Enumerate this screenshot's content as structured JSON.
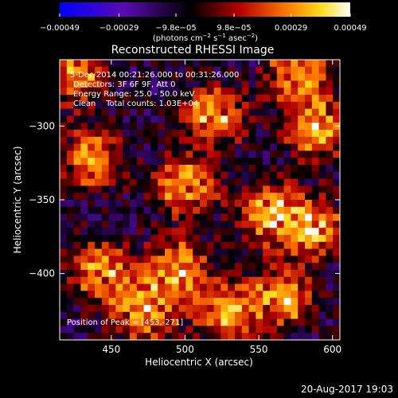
{
  "colorbar": {
    "tick_labels": [
      "−0.00049",
      "−0.00029",
      "−9.8e−05",
      "9.8e−05",
      "0.00029",
      "0.00049"
    ],
    "tick_values": [
      -0.00049,
      -0.00029,
      -9.8e-05,
      9.8e-05,
      0.00029,
      0.00049
    ],
    "range": [
      -0.00049,
      0.00049
    ],
    "units_parts": [
      "(photons cm",
      "−2",
      " s",
      "−1",
      " asec",
      "−2",
      ")"
    ]
  },
  "chart_data": {
    "type": "heatmap",
    "title": "Reconstructed RHESSI Image",
    "xlabel": "Heliocentric X (arcsec)",
    "ylabel": "Heliocentric Y (arcsec)",
    "xlim": [
      415,
      605
    ],
    "ylim": [
      -445,
      -255
    ],
    "x_ticks": [
      450,
      500,
      550,
      600
    ],
    "y_ticks": [
      -300,
      -350,
      -400
    ],
    "x_tick_labels": [
      "450",
      "500",
      "550",
      "600"
    ],
    "y_tick_labels": [
      "−300",
      "−350",
      "−400"
    ],
    "annotations": [
      "5-Dec-2014 00:21:26.000 to 00:31:26.000",
      "Detectors: 3F 6F 9F, Att 0",
      "Energy Range: 25.0 - 50.0 keV",
      "Clean    Total counts: 1.03E+04"
    ],
    "peak_label": "Position of Peak = [453,-271]",
    "peak": [
      453,
      -271
    ],
    "grid": false,
    "colormap": [
      "#0000ff",
      "#5a0ab4",
      "#000000",
      "#b40000",
      "#ff7800",
      "#ffdc1e",
      "#ffffff"
    ]
  },
  "footer": {
    "date": "20-Aug-2017 19:03"
  }
}
